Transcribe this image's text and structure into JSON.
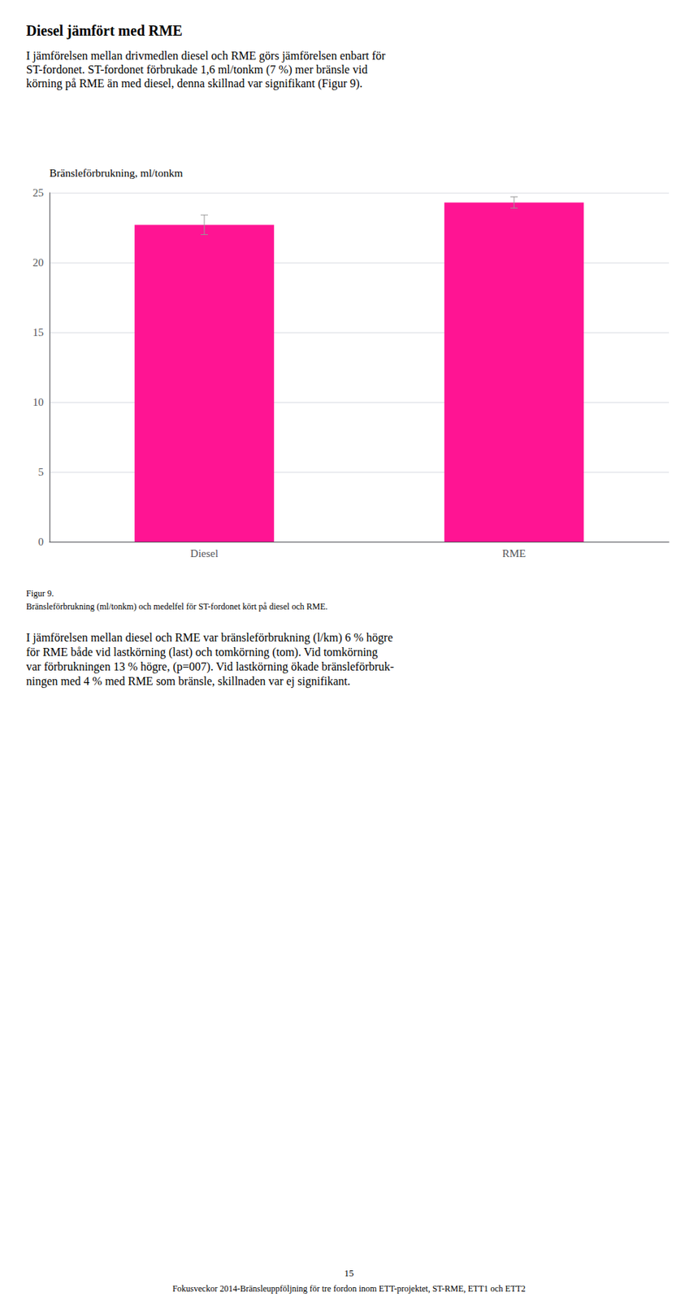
{
  "chart_data": {
    "type": "bar",
    "title": "Bränsleförbrukning, ml/tonkm",
    "categories": [
      "Diesel",
      "RME"
    ],
    "values": [
      22.7,
      24.3
    ],
    "errors": [
      0.7,
      0.4
    ],
    "color": "#FF1493",
    "ylim": [
      0,
      25
    ],
    "yticks": [
      0,
      5,
      10,
      15,
      20,
      25
    ],
    "grid": true,
    "annotations": [
      "Diesel jämfört med RME",
      "I jämförelsen mellan drivmedlen diesel och RME görs jämförelsen enbart för",
      "ST-fordonet. ST-fordonet förbrukade 1,6 ml/tonkm (7 %) mer bränsle vid",
      "körning på RME än med diesel, denna skillnad var signifikant (Figur 9).",
      "Figur 9.",
      "Bränsleförbrukning (ml/tonkm) och medelfel för ST-fordonet kört på diesel och RME.",
      "I jämförelsen mellan diesel och RME var bränsleförbrukning (l/km) 6 % högre",
      "för RME både vid lastkörning (last) och tomkörning (tom). Vid tomkörning",
      "var förbrukningen 13 % högre, (p=007). Vid lastkörning ökade bränsleförbruk-",
      "ningen med 4 % med RME som bränsle, skillnaden var ej signifikant.",
      "15",
      "Fokusveckor 2014-Bränsleuppföljning för tre fordon inom ETT-projektet, ST-RME, ETT1 och ETT2"
    ]
  }
}
